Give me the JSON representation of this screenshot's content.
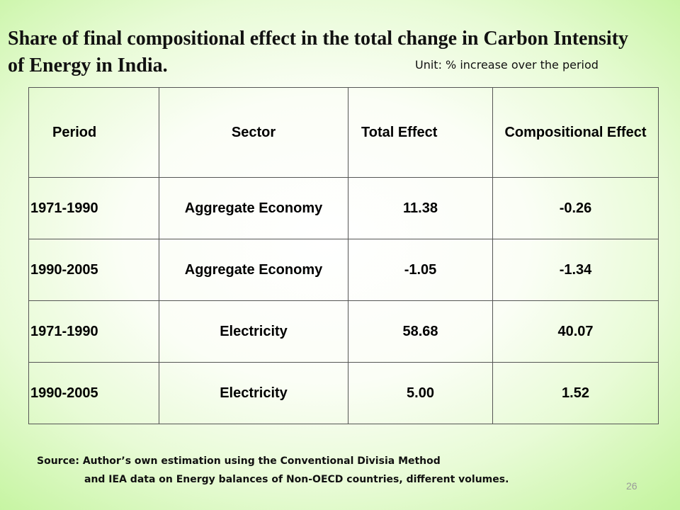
{
  "slide": {
    "title": "Share of final compositional effect in the total change in Carbon Intensity of Energy in India.",
    "unit": "Unit: % increase over the period",
    "table": {
      "headers": [
        "Period",
        "Sector",
        "Total Effect",
        "Compositional Effect"
      ],
      "rows": [
        {
          "period": "1971-1990",
          "sector": "Aggregate Economy",
          "total": "11.38",
          "compositional": "-0.26"
        },
        {
          "period": "1990-2005",
          "sector": "Aggregate Economy",
          "total": "-1.05",
          "compositional": "-1.34"
        },
        {
          "period": "1971-1990",
          "sector": "Electricity",
          "total": "58.68",
          "compositional": "40.07"
        },
        {
          "period": "1990-2005",
          "sector": "Electricity",
          "total": "5.00",
          "compositional": "1.52"
        }
      ]
    },
    "source": {
      "line1": "Source: Author’s own estimation using the Conventional Divisia Method",
      "line2": "and IEA data on Energy balances of Non-OECD countries, different volumes."
    },
    "page_number": "26"
  }
}
